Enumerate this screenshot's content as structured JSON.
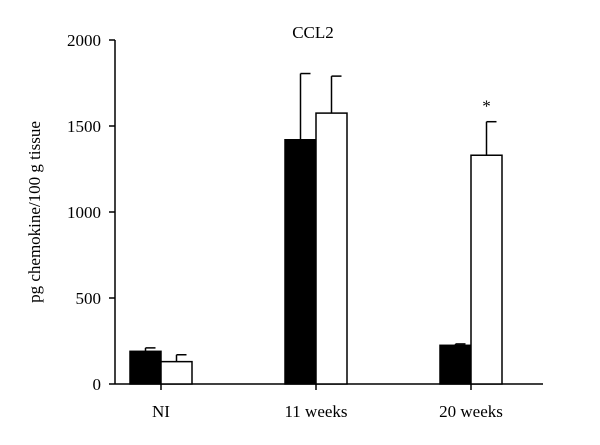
{
  "chart_data": {
    "type": "bar",
    "title": "CCL2",
    "ylabel": "pg chemokine/100 g tissue",
    "xlabel": "",
    "categories": [
      "NI",
      "11 weeks",
      "20 weeks"
    ],
    "ylim": [
      0,
      2000
    ],
    "yticks": [
      0,
      500,
      1000,
      1500,
      2000
    ],
    "series": [
      {
        "fill": "#000000",
        "values": [
          190,
          1420,
          225
        ],
        "errors": [
          20,
          385,
          8
        ]
      },
      {
        "fill": "#ffffff",
        "values": [
          130,
          1575,
          1330
        ],
        "errors": [
          40,
          215,
          195
        ]
      }
    ],
    "annotations": [
      {
        "category": "20 weeks",
        "series": 1,
        "text": "*"
      }
    ],
    "grid": false,
    "legend": "none"
  }
}
